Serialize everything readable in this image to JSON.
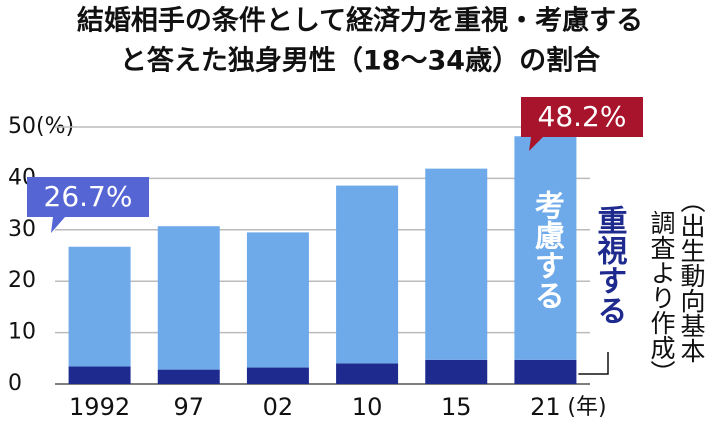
{
  "chart_data": {
    "type": "stacked_bar",
    "title": [
      "結婚相手の条件として経済力を重視・考慮する",
      "と答えた独身男性（18～34歳）の割合"
    ],
    "categories": [
      "1992",
      "97",
      "02",
      "10",
      "15",
      "21"
    ],
    "x_label": "(年)",
    "series": [
      {
        "name": "重視する",
        "color": "#1f2a8f",
        "values": [
          3.4,
          2.8,
          3.2,
          4.0,
          4.7,
          4.7
        ]
      },
      {
        "name": "考慮する",
        "color": "#6eaaea",
        "values": [
          23.3,
          27.9,
          26.3,
          34.6,
          37.2,
          43.5
        ]
      }
    ],
    "annotations": [
      {
        "text": "26.7%",
        "color": "#5566d4"
      },
      {
        "text": "48.2%",
        "color": "#a8142c"
      }
    ],
    "source": [
      "（出生動向基本",
      "調査より作成）"
    ],
    "ylim": [
      0,
      50
    ],
    "yticks": [
      0,
      10,
      20,
      30,
      40,
      {
        "value": 50,
        "label": "50(%)"
      }
    ],
    "grid": true
  }
}
